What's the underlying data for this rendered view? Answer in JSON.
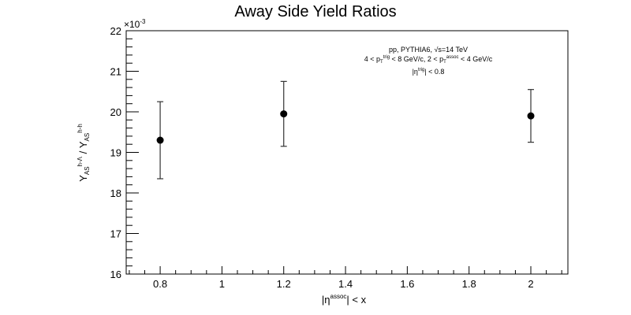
{
  "chart_data": {
    "type": "scatter",
    "title": "Away Side Yield Ratios",
    "xlabel": {
      "base": "|η",
      "sup": "assoc",
      "tail": "| < x"
    },
    "ylabel": {
      "parts": [
        {
          "text": "Y"
        },
        {
          "sub": "AS"
        },
        {
          "sup": "h-Λ"
        },
        {
          "text": "  / Y"
        },
        {
          "sub": "AS"
        },
        {
          "sup": "h-h"
        }
      ]
    },
    "y_multiplier": "×10",
    "y_multiplier_exp": "-3",
    "xlim": [
      0.69,
      2.12
    ],
    "ylim": [
      16,
      22
    ],
    "x_ticks": [
      0.8,
      1,
      1.2,
      1.4,
      1.6,
      1.8,
      2
    ],
    "x_tick_labels": [
      "0.8",
      "1",
      "1.2",
      "1.4",
      "1.6",
      "1.8",
      "2"
    ],
    "y_ticks": [
      16,
      17,
      18,
      19,
      20,
      21,
      22
    ],
    "y_tick_labels": [
      "16",
      "17",
      "18",
      "19",
      "20",
      "21",
      "22"
    ],
    "points": [
      {
        "x": 0.8,
        "y": 19.3,
        "yerr": 0.95
      },
      {
        "x": 1.2,
        "y": 19.95,
        "yerr": 0.8
      },
      {
        "x": 2.0,
        "y": 19.9,
        "yerr": 0.65
      }
    ],
    "annotations": [
      {
        "parts": [
          {
            "text": "pp, PYTHIA6, √s=14 TeV"
          }
        ]
      },
      {
        "parts": [
          {
            "text": "4 < p"
          },
          {
            "sub": "T"
          },
          {
            "sup": "trig"
          },
          {
            "text": " < 8 GeV/c, 2 < p"
          },
          {
            "sub": "T"
          },
          {
            "sup": "assoc"
          },
          {
            "text": " < 4 GeV/c"
          }
        ]
      },
      {
        "parts": [
          {
            "text": "|η"
          },
          {
            "sup": "trig"
          },
          {
            "text": "| < 0.8"
          }
        ]
      }
    ],
    "grid": false,
    "legend": "none",
    "marker_color": "#000000"
  }
}
